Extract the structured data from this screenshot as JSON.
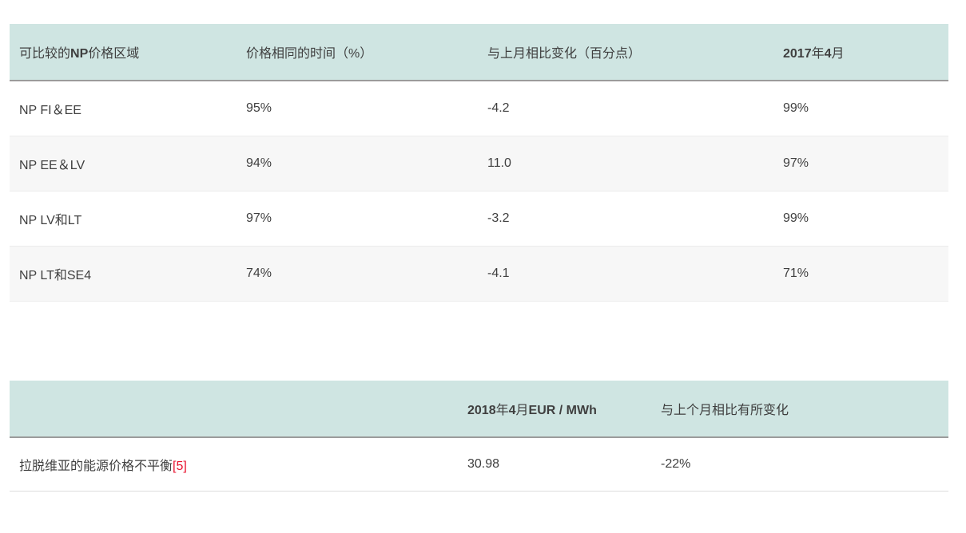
{
  "colors": {
    "header_bg": "#cfe5e2",
    "header_border": "#9b9b9b",
    "alt_row_bg": "#f7f7f7",
    "row_border": "#ececec",
    "text": "#3f3f3f",
    "footnote_red": "#e8112d"
  },
  "chart_data": [
    {
      "type": "table",
      "columns": [
        "可比较的NP价格区域",
        "价格相同的时间（%）",
        "与上月相比变化（百分点）",
        "2017年4月"
      ],
      "rows": [
        [
          "NP FI＆EE",
          "95%",
          "-4.2",
          "99%"
        ],
        [
          "NP EE＆LV",
          "94%",
          "11.0",
          "97%"
        ],
        [
          "NP LV和LT",
          "97%",
          "-3.2",
          "99%"
        ],
        [
          "NP LT和SE4",
          "74%",
          "-4.1",
          "71%"
        ]
      ],
      "layout": {
        "header_bg": "#cfe5e2",
        "zebra_stripes": true
      }
    },
    {
      "type": "table",
      "columns": [
        "",
        "2018年4月EUR / MWh",
        "与上个月相比有所变化"
      ],
      "rows": [
        [
          "拉脱维亚的能源价格不平衡[5]",
          "30.98",
          "-22%"
        ]
      ],
      "layout": {
        "header_bg": "#cfe5e2",
        "zebra_stripes": false
      }
    }
  ],
  "header_segments": {
    "t1_col1": {
      "pre": "可比较的",
      "bold": "NP",
      "post": "价格区域"
    },
    "t1_col4": {
      "year_bold": "2017",
      "year_reg": "年",
      "month_bold": "4",
      "month_reg": "月"
    },
    "t2_col2": {
      "year_bold": "2018",
      "year_reg": "年",
      "month_bold": "4",
      "month_reg": "月",
      "unit_bold": "EUR / MWh"
    },
    "t2_row_label": {
      "text": "拉脱维亚的能源价格不平衡",
      "footnote": "[5]"
    }
  }
}
